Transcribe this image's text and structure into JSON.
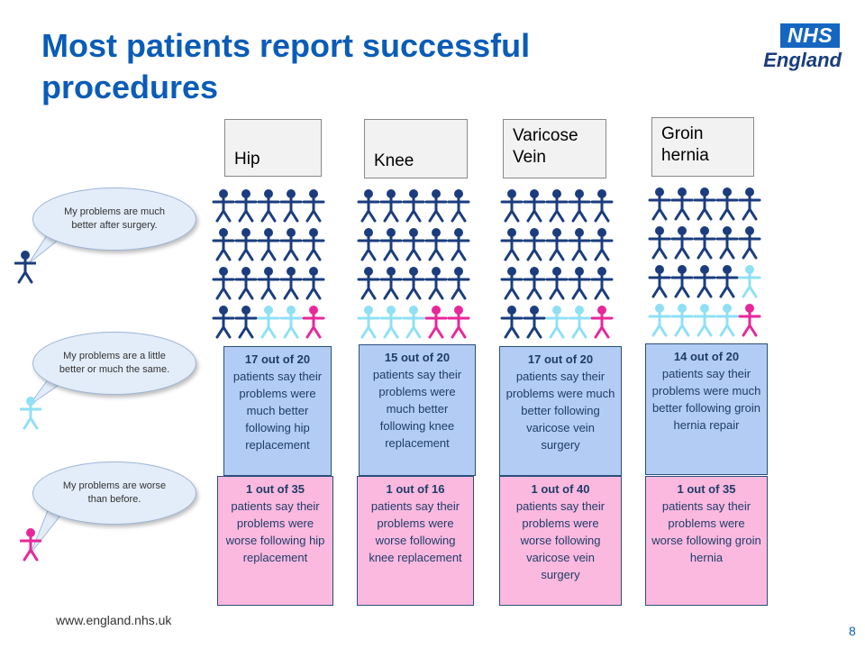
{
  "title": "Most patients report successful procedures",
  "logo": {
    "nhs": "NHS",
    "org": "England"
  },
  "colors": {
    "title": "#0a5cb8",
    "better": "#1b3d7e",
    "same": "#8fe0f5",
    "worse": "#e8279a"
  },
  "legend": [
    {
      "text": "My problems are much better after surgery.",
      "icon": "stick-figure-icon",
      "color": "#1b3d7e"
    },
    {
      "text": "My problems are a little better or much the same.",
      "icon": "stick-figure-icon",
      "color": "#8fe0f5"
    },
    {
      "text": "My problems are worse than before.",
      "icon": "stick-figure-icon",
      "color": "#e8279a"
    }
  ],
  "columns": [
    {
      "label": "Hip",
      "better": 17,
      "same": 2,
      "worse": 1,
      "better_lead": "17 out of 20",
      "better_text": "patients say their problems were much better following hip replacement",
      "worse_lead": "1 out of 35",
      "worse_text": "patients say their problems were worse following hip replacement"
    },
    {
      "label": "Knee",
      "better": 15,
      "same": 3,
      "worse": 2,
      "better_lead": "15 out of 20",
      "better_text": "patients say their problems were much better following knee replacement",
      "worse_lead": "1 out of 16",
      "worse_text": "patients say their problems were worse following knee replacement"
    },
    {
      "label": "Varicose Vein",
      "better": 17,
      "same": 2,
      "worse": 1,
      "better_lead": "17 out of 20",
      "better_text": "patients say their problems were much better following varicose vein surgery",
      "worse_lead": "1 out of 40",
      "worse_text": "patients say their problems were worse following varicose vein surgery"
    },
    {
      "label": "Groin hernia",
      "better": 14,
      "same": 5,
      "worse": 1,
      "better_lead": "14 out of 20",
      "better_text": "patients say their problems were much better following groin hernia repair",
      "worse_lead": "1 out of 35",
      "worse_text": "patients say their problems were worse following groin hernia"
    }
  ],
  "footer": {
    "url": "www.england.nhs.uk",
    "page": "8"
  }
}
